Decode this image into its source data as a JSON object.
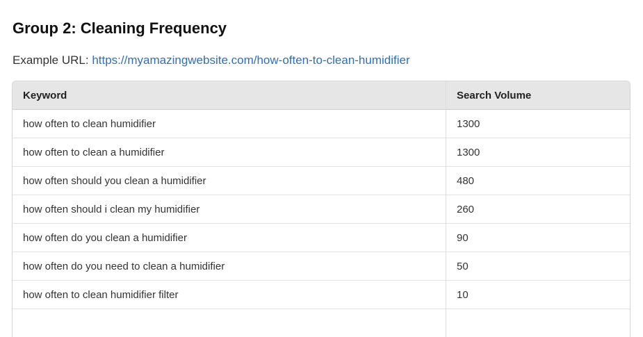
{
  "title": "Group 2: Cleaning Frequency",
  "example_label": "Example URL: ",
  "example_url": "https://myamazingwebsite.com/how-often-to-clean-humidifier",
  "table": {
    "headers": [
      "Keyword",
      "Search Volume"
    ],
    "rows": [
      [
        "how often to clean humidifier",
        "1300"
      ],
      [
        "how often to clean a humidifier",
        "1300"
      ],
      [
        "how often should you clean a humidifier",
        "480"
      ],
      [
        "how often should i clean my humidifier",
        "260"
      ],
      [
        "how often do you clean a humidifier",
        "90"
      ],
      [
        "how often do you need to clean a humidifier",
        "50"
      ],
      [
        "how often to clean humidifier filter",
        "10"
      ]
    ]
  }
}
